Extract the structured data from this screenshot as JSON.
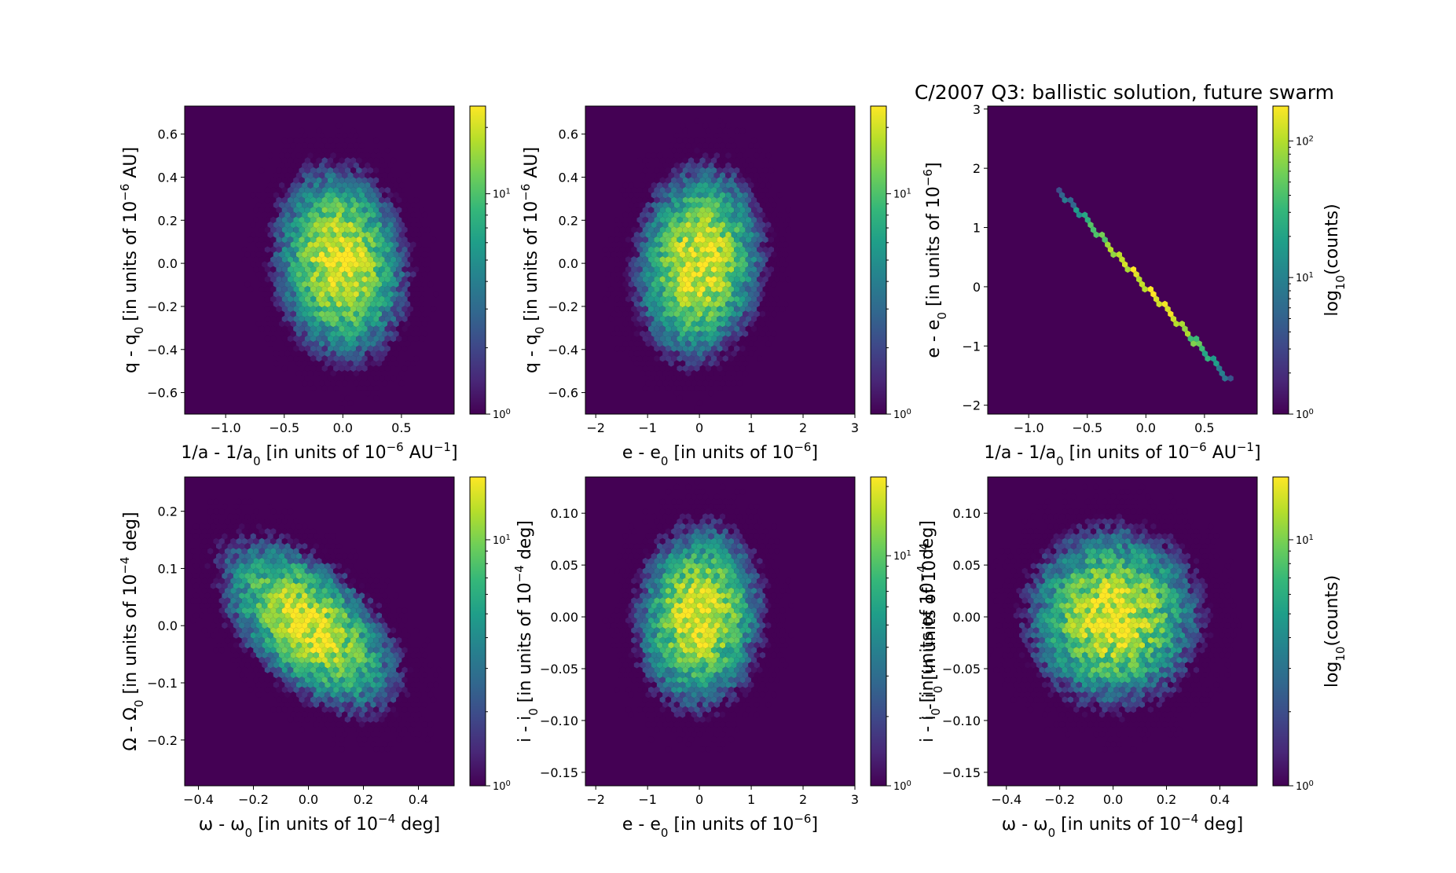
{
  "title": "C/2007 Q3:  ballistic solution, future swarm",
  "colorbar_ticks": [
    "10",
    "10",
    "10"
  ],
  "colorbar_tick_exponents": [
    "0",
    "1",
    "2"
  ],
  "chart_data": [
    {
      "type": "heatmap",
      "subtype": "hexbin",
      "xlabel": "1/a - 1/a",
      "xlabel_sub": "0",
      "xlabel_unit_pre": " [in units of 10",
      "xlabel_unit_exp": "−6",
      "xlabel_unit_mid": " AU",
      "xlabel_unit_exp2": "−1",
      "xlabel_unit_post": "]",
      "ylabel": "q - q",
      "ylabel_sub": "0",
      "ylabel_unit_pre": " [in units of 10",
      "ylabel_unit_exp": "−6",
      "ylabel_unit_post": " AU]",
      "xlim": [
        -1.35,
        0.95
      ],
      "ylim": [
        -0.7,
        0.73
      ],
      "xticks": [
        "−1.0",
        "−0.5",
        "0.0",
        "0.5"
      ],
      "xtick_values": [
        -1.0,
        -0.5,
        0.0,
        0.5
      ],
      "yticks": [
        "−0.6",
        "−0.4",
        "−0.2",
        "0.0",
        "0.2",
        "0.4",
        "0.6"
      ],
      "ytick_values": [
        -0.6,
        -0.4,
        -0.2,
        0.0,
        0.2,
        0.4,
        0.6
      ],
      "distribution": {
        "mean": [
          -0.02,
          0.0
        ],
        "sd": [
          0.25,
          0.2
        ],
        "correlation": -0.1
      },
      "colorbar": {
        "scale": "log",
        "range": [
          1,
          25
        ],
        "ticks": [
          1,
          10
        ],
        "label": "",
        "label_sub": "",
        "label_post": ""
      }
    },
    {
      "type": "heatmap",
      "subtype": "hexbin",
      "xlabel": "e - e",
      "xlabel_sub": "0",
      "xlabel_unit_pre": " [in units of 10",
      "xlabel_unit_exp": "−6",
      "xlabel_unit_mid": "",
      "xlabel_unit_exp2": "",
      "xlabel_unit_post": "]",
      "ylabel": "q - q",
      "ylabel_sub": "0",
      "ylabel_unit_pre": " [in units of 10",
      "ylabel_unit_exp": "−6",
      "ylabel_unit_post": " AU]",
      "xlim": [
        -2.2,
        3.0
      ],
      "ylim": [
        -0.7,
        0.73
      ],
      "xticks": [
        "−2",
        "−1",
        "0",
        "1",
        "2",
        "3"
      ],
      "xtick_values": [
        -2,
        -1,
        0,
        1,
        2,
        3
      ],
      "yticks": [
        "−0.6",
        "−0.4",
        "−0.2",
        "0.0",
        "0.2",
        "0.4",
        "0.6"
      ],
      "ytick_values": [
        -0.6,
        -0.4,
        -0.2,
        0.0,
        0.2,
        0.4,
        0.6
      ],
      "distribution": {
        "mean": [
          0.0,
          0.0
        ],
        "sd": [
          0.55,
          0.2
        ],
        "correlation": 0.1
      },
      "colorbar": {
        "scale": "log",
        "range": [
          1,
          25
        ],
        "ticks": [
          1,
          10
        ],
        "label": "",
        "label_sub": "",
        "label_post": ""
      }
    },
    {
      "type": "heatmap",
      "subtype": "hexbin",
      "xlabel": "1/a - 1/a",
      "xlabel_sub": "0",
      "xlabel_unit_pre": " [in units of 10",
      "xlabel_unit_exp": "−6",
      "xlabel_unit_mid": " AU",
      "xlabel_unit_exp2": "−1",
      "xlabel_unit_post": "]",
      "ylabel": "e - e",
      "ylabel_sub": "0",
      "ylabel_unit_pre": " [in units of 10",
      "ylabel_unit_exp": "−6",
      "ylabel_unit_post": "]",
      "xlim": [
        -1.35,
        0.95
      ],
      "ylim": [
        -2.15,
        3.05
      ],
      "xticks": [
        "−1.0",
        "−0.5",
        "0.0",
        "0.5"
      ],
      "xtick_values": [
        -1.0,
        -0.5,
        0.0,
        0.5
      ],
      "yticks": [
        "−2",
        "−1",
        "0",
        "1",
        "2",
        "3"
      ],
      "ytick_values": [
        -2,
        -1,
        0,
        1,
        2,
        3
      ],
      "distribution": {
        "mean": [
          0.0,
          0.0
        ],
        "sd": [
          0.25,
          0.55
        ],
        "correlation": -1.0
      },
      "colorbar": {
        "scale": "log",
        "range": [
          1,
          180
        ],
        "ticks": [
          1,
          10,
          100
        ],
        "label": "log",
        "label_sub": "10",
        "label_post": "(counts)"
      }
    },
    {
      "type": "heatmap",
      "subtype": "hexbin",
      "xlabel": "ω - ω",
      "xlabel_sub": "0",
      "xlabel_unit_pre": " [in units of 10",
      "xlabel_unit_exp": "−4",
      "xlabel_unit_mid": " deg",
      "xlabel_unit_exp2": "",
      "xlabel_unit_post": "]",
      "ylabel": "Ω - Ω",
      "ylabel_sub": "0",
      "ylabel_unit_pre": " [in units of 10",
      "ylabel_unit_exp": "−4",
      "ylabel_unit_post": " deg]",
      "xlim": [
        -0.45,
        0.53
      ],
      "ylim": [
        -0.28,
        0.26
      ],
      "xticks": [
        "−0.4",
        "−0.2",
        "0.0",
        "0.2",
        "0.4"
      ],
      "xtick_values": [
        -0.4,
        -0.2,
        0.0,
        0.2,
        0.4
      ],
      "yticks": [
        "−0.2",
        "−0.1",
        "0.0",
        "0.1",
        "0.2"
      ],
      "ytick_values": [
        -0.2,
        -0.1,
        0.0,
        0.1,
        0.2
      ],
      "distribution": {
        "mean": [
          0.0,
          0.0
        ],
        "sd": [
          0.15,
          0.07
        ],
        "correlation": -0.55
      },
      "colorbar": {
        "scale": "log",
        "range": [
          1,
          18
        ],
        "ticks": [
          1,
          10
        ],
        "label": "",
        "label_sub": "",
        "label_post": ""
      }
    },
    {
      "type": "heatmap",
      "subtype": "hexbin",
      "xlabel": "e - e",
      "xlabel_sub": "0",
      "xlabel_unit_pre": " [in units of 10",
      "xlabel_unit_exp": "−6",
      "xlabel_unit_mid": "",
      "xlabel_unit_exp2": "",
      "xlabel_unit_post": "]",
      "ylabel": "i - i",
      "ylabel_sub": "0",
      "ylabel_unit_pre": " [in units of 10",
      "ylabel_unit_exp": "−4",
      "ylabel_unit_post": " deg]",
      "xlim": [
        -2.2,
        3.0
      ],
      "ylim": [
        -0.163,
        0.135
      ],
      "xticks": [
        "−2",
        "−1",
        "0",
        "1",
        "2",
        "3"
      ],
      "xtick_values": [
        -2,
        -1,
        0,
        1,
        2,
        3
      ],
      "yticks": [
        "−0.15",
        "−0.10",
        "−0.05",
        "0.00",
        "0.05",
        "0.10"
      ],
      "ytick_values": [
        -0.15,
        -0.1,
        -0.05,
        0.0,
        0.05,
        0.1
      ],
      "distribution": {
        "mean": [
          0.0,
          0.0
        ],
        "sd": [
          0.55,
          0.04
        ],
        "correlation": 0.05
      },
      "colorbar": {
        "scale": "log",
        "range": [
          1,
          22
        ],
        "ticks": [
          1,
          10
        ],
        "label": "i - i",
        "label_sub": "0",
        "label_post": " [in units of 10",
        "label_exp": "−4"
      }
    },
    {
      "type": "heatmap",
      "subtype": "hexbin",
      "xlabel": "ω - ω",
      "xlabel_sub": "0",
      "xlabel_unit_pre": " [in units of 10",
      "xlabel_unit_exp": "−4",
      "xlabel_unit_mid": " deg",
      "xlabel_unit_exp2": "",
      "xlabel_unit_post": "]",
      "ylabel": "i - i",
      "ylabel_sub": "0",
      "ylabel_unit_pre": " [in units of 10",
      "ylabel_unit_exp": "−4",
      "ylabel_unit_post": " deg]",
      "xlim": [
        -0.47,
        0.54
      ],
      "ylim": [
        -0.163,
        0.135
      ],
      "xticks": [
        "−0.4",
        "−0.2",
        "0.0",
        "0.2",
        "0.4"
      ],
      "xtick_values": [
        -0.4,
        -0.2,
        0.0,
        0.2,
        0.4
      ],
      "yticks": [
        "−0.15",
        "−0.10",
        "−0.05",
        "0.00",
        "0.05",
        "0.10"
      ],
      "ytick_values": [
        -0.15,
        -0.1,
        -0.05,
        0.0,
        0.05,
        0.1
      ],
      "distribution": {
        "mean": [
          0.0,
          0.0
        ],
        "sd": [
          0.15,
          0.04
        ],
        "correlation": 0.0
      },
      "colorbar": {
        "scale": "log",
        "range": [
          1,
          18
        ],
        "ticks": [
          1,
          10
        ],
        "label": "log",
        "label_sub": "10",
        "label_post": "(counts)"
      }
    }
  ],
  "colormap": [
    "#440154",
    "#482878",
    "#3e4989",
    "#31688e",
    "#26828e",
    "#1f9e89",
    "#35b779",
    "#6ece58",
    "#b5de2b",
    "#fde725"
  ]
}
